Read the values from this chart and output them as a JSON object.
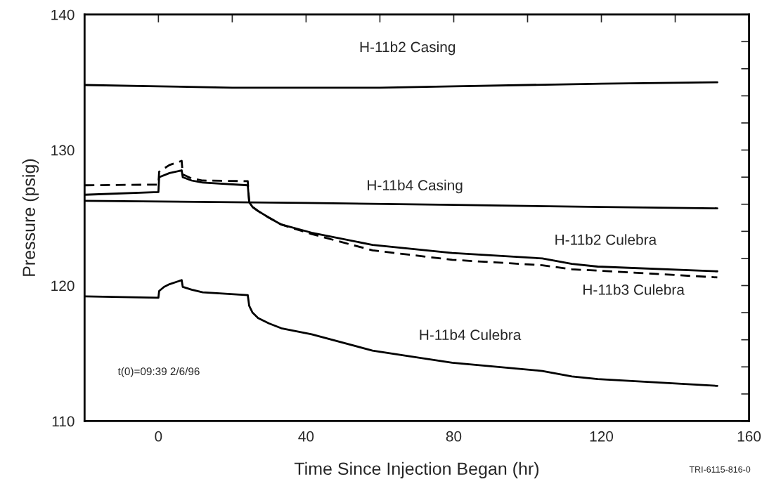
{
  "chart_data": {
    "type": "line",
    "xlabel": "Time Since Injection Began (hr)",
    "ylabel": "Pressure (psig)",
    "xlim": [
      -20,
      160
    ],
    "ylim": [
      110,
      140
    ],
    "xticks": [
      {
        "value": 0,
        "label": "0"
      },
      {
        "value": 20,
        "label": null
      },
      {
        "value": 40,
        "label": "40"
      },
      {
        "value": 60,
        "label": null
      },
      {
        "value": 80,
        "label": "80"
      },
      {
        "value": 100,
        "label": null
      },
      {
        "value": 120,
        "label": "120"
      },
      {
        "value": 140,
        "label": null
      },
      {
        "value": 160,
        "label": "160"
      }
    ],
    "yticks": [
      110,
      {
        "value": 112,
        "label": null
      },
      {
        "value": 114,
        "label": null
      },
      {
        "value": 116,
        "label": null
      },
      {
        "value": 118,
        "label": null
      },
      120,
      {
        "value": 122,
        "label": null
      },
      {
        "value": 124,
        "label": null
      },
      {
        "value": 126,
        "label": null
      },
      {
        "value": 128,
        "label": null
      },
      130,
      {
        "value": 132,
        "label": null
      },
      {
        "value": 134,
        "label": null
      },
      {
        "value": 136,
        "label": null
      },
      {
        "value": 138,
        "label": null
      },
      140
    ],
    "grid": false,
    "marker": "none",
    "series": [
      {
        "name": "H-11b2 Casing",
        "color": "#000000",
        "line_style": "solid",
        "x": [
          -20,
          0,
          20,
          40,
          60,
          80,
          100,
          120,
          151.4
        ],
        "values": [
          134.8,
          134.7,
          134.6,
          134.6,
          134.6,
          134.7,
          134.8,
          134.9,
          135.0
        ]
      },
      {
        "name": "H-11b4 Casing",
        "color": "#000000",
        "line_style": "solid",
        "x": [
          -20,
          40,
          80,
          120,
          151.4
        ],
        "values": [
          126.25,
          126.1,
          125.95,
          125.8,
          125.7
        ]
      },
      {
        "name": "H-11b2 Culebra",
        "color": "#000000",
        "line_style": "solid",
        "x": [
          -20,
          0,
          0.2,
          3,
          6.3,
          6.6,
          9,
          12,
          24.2,
          24.6,
          25.5,
          27,
          30,
          33.3,
          41.5,
          58,
          79.6,
          104,
          112,
          119,
          151.4
        ],
        "values": [
          126.7,
          126.9,
          128.0,
          128.3,
          128.5,
          128.0,
          127.75,
          127.6,
          127.4,
          126.15,
          125.8,
          125.5,
          125.0,
          124.5,
          123.9,
          123.0,
          122.4,
          122.0,
          121.6,
          121.4,
          121.05
        ]
      },
      {
        "name": "H-11b3 Culebra",
        "color": "#000000",
        "line_style": "dashed",
        "x": [
          -20,
          0,
          0.2,
          3,
          6.3,
          6.6,
          9,
          12,
          24.2,
          24.6,
          25.5,
          27,
          30,
          33.3,
          41.5,
          58,
          79.6,
          104,
          112,
          119,
          151.4
        ],
        "values": [
          127.4,
          127.45,
          128.4,
          128.9,
          129.2,
          128.2,
          127.9,
          127.75,
          127.7,
          126.15,
          125.8,
          125.5,
          125.0,
          124.5,
          123.8,
          122.6,
          121.9,
          121.5,
          121.2,
          121.1,
          120.6
        ]
      },
      {
        "name": "H-11b4 Culebra",
        "color": "#000000",
        "line_style": "solid",
        "x": [
          -20,
          0,
          0.2,
          1.5,
          3,
          6.3,
          6.6,
          9,
          12,
          24.2,
          24.6,
          25.5,
          27,
          30,
          33.3,
          41.5,
          58,
          79.6,
          104,
          112,
          119,
          151.4
        ],
        "values": [
          119.2,
          119.1,
          119.6,
          119.9,
          120.1,
          120.4,
          119.9,
          119.7,
          119.5,
          119.3,
          118.5,
          118.0,
          117.6,
          117.2,
          116.85,
          116.4,
          115.2,
          114.3,
          113.7,
          113.3,
          113.1,
          112.6
        ]
      }
    ],
    "annotations": [
      "t(0)=09:39 2/6/96",
      "TRI-6115-816-0"
    ]
  }
}
